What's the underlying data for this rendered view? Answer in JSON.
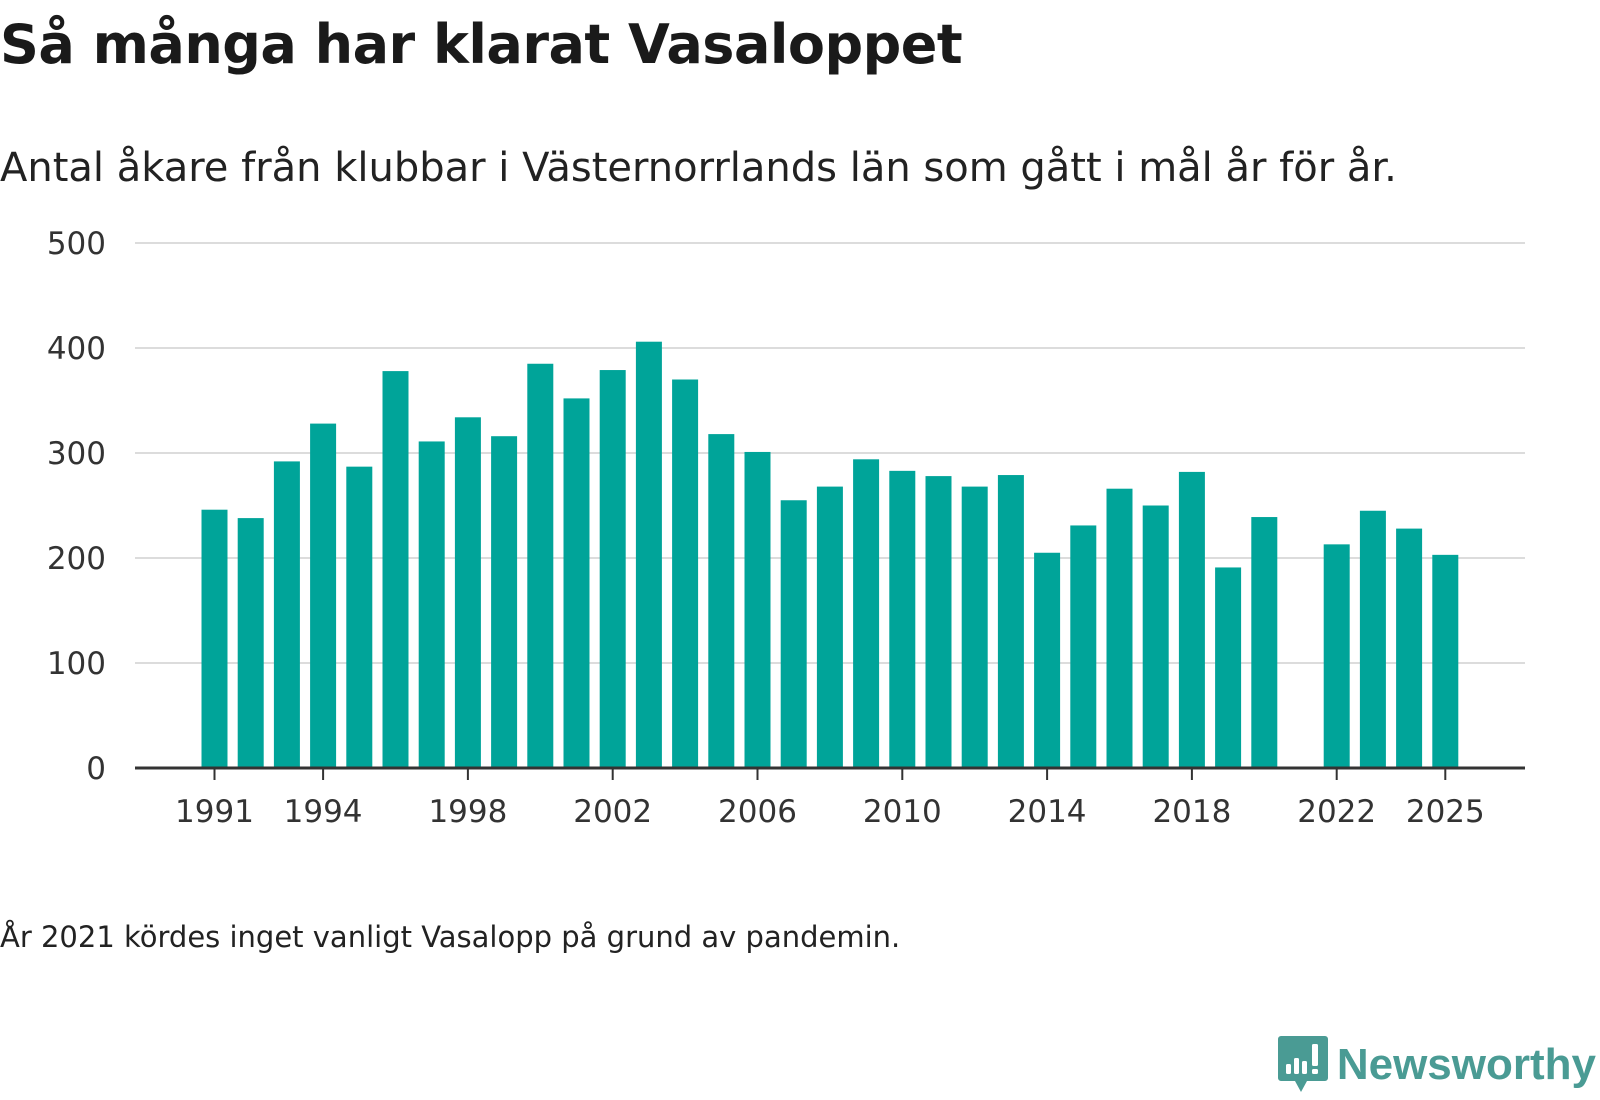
{
  "title": "Så många har klarat Vasaloppet",
  "subtitle": "Antal åkare från klubbar i Västernorrlands län som gått i mål år för år.",
  "footnote": "År 2021 kördes inget vanligt Vasalopp på grund av pandemin.",
  "brand": {
    "name": "Newsworthy",
    "icon": "newsworthy-logo-icon",
    "color": "#4a9b94"
  },
  "chart_data": {
    "type": "bar",
    "title": "Så många har klarat Vasaloppet",
    "xlabel": "",
    "ylabel": "",
    "bar_color": "#00a499",
    "ylim": [
      0,
      500
    ],
    "yticks": [
      0,
      100,
      200,
      300,
      400,
      500
    ],
    "xticks": [
      1991,
      1994,
      1998,
      2002,
      2006,
      2010,
      2014,
      2018,
      2022,
      2025
    ],
    "grid": true,
    "categories": [
      1991,
      1992,
      1993,
      1994,
      1995,
      1996,
      1997,
      1998,
      1999,
      2000,
      2001,
      2002,
      2003,
      2004,
      2005,
      2006,
      2007,
      2008,
      2009,
      2010,
      2011,
      2012,
      2013,
      2014,
      2015,
      2016,
      2017,
      2018,
      2019,
      2020,
      2021,
      2022,
      2023,
      2024,
      2025
    ],
    "values": [
      246,
      238,
      292,
      328,
      287,
      378,
      311,
      334,
      316,
      385,
      352,
      379,
      406,
      370,
      318,
      301,
      255,
      268,
      294,
      283,
      278,
      268,
      279,
      205,
      231,
      266,
      250,
      282,
      191,
      239,
      null,
      213,
      245,
      228,
      203
    ]
  }
}
